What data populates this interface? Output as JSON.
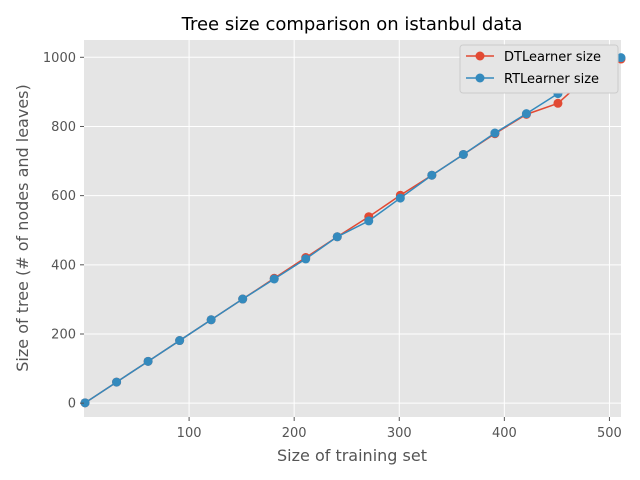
{
  "chart_data": {
    "type": "line",
    "title": "Tree size comparison on istanbul data",
    "xlabel": "Size of training set",
    "ylabel": "Size of tree (# of nodes and leaves)",
    "xlim": [
      0,
      511
    ],
    "ylim": [
      -40,
      1050
    ],
    "x_ticks": [
      100,
      200,
      300,
      400,
      500
    ],
    "y_ticks": [
      0,
      200,
      400,
      600,
      800,
      1000
    ],
    "x_tick_labels": [
      "100",
      "200",
      "300",
      "400",
      "500"
    ],
    "y_tick_labels": [
      "0",
      "200",
      "400",
      "600",
      "800",
      "1000"
    ],
    "grid": true,
    "legend_position": "top-right",
    "x": [
      1,
      31,
      61,
      91,
      121,
      151,
      181,
      211,
      241,
      271,
      301,
      331,
      361,
      391,
      421,
      451,
      481,
      511
    ],
    "series": [
      {
        "name": "DTLearner size",
        "color": "#E24A33",
        "values": [
          1,
          61,
          121,
          181,
          241,
          301,
          361,
          421,
          481,
          539,
          601,
          659,
          719,
          779,
          835,
          867,
          949,
          995
        ]
      },
      {
        "name": "RTLearner size",
        "color": "#348ABD",
        "values": [
          1,
          61,
          121,
          181,
          241,
          301,
          359,
          417,
          481,
          527,
          593,
          659,
          719,
          781,
          837,
          895,
          949,
          999
        ]
      }
    ]
  }
}
